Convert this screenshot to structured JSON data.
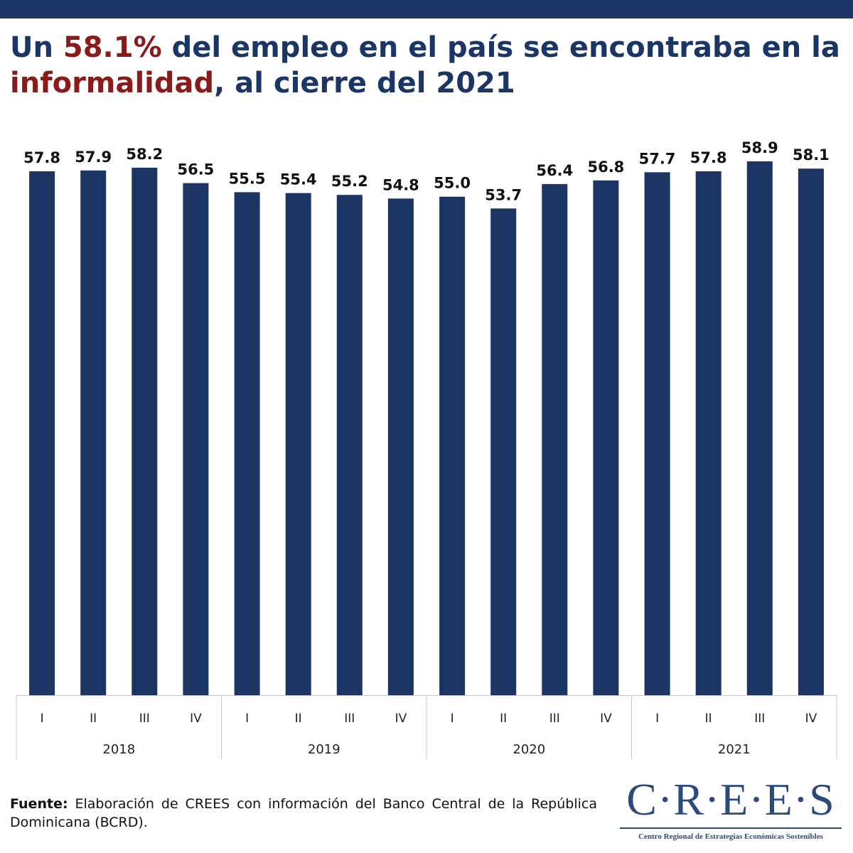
{
  "title": {
    "part1": "Un ",
    "highlight1": "58.1%",
    "part2": " del empleo en el país se encontraba en la ",
    "highlight2": "informalidad",
    "part3": ", al cierre del 2021"
  },
  "colors": {
    "bar": "#1b3564",
    "highlight": "#8b1a1a",
    "axis": "#c8c8c8"
  },
  "chart_data": {
    "type": "bar",
    "title": "Un 58.1% del empleo en el país se encontraba en la informalidad, al cierre del 2021",
    "categories": [
      "I",
      "II",
      "III",
      "IV",
      "I",
      "II",
      "III",
      "IV",
      "I",
      "II",
      "III",
      "IV",
      "I",
      "II",
      "III",
      "IV"
    ],
    "groups": [
      {
        "label": "2018",
        "count": 4
      },
      {
        "label": "2019",
        "count": 4
      },
      {
        "label": "2020",
        "count": 4
      },
      {
        "label": "2021",
        "count": 4
      }
    ],
    "values": [
      57.8,
      57.9,
      58.2,
      56.5,
      55.5,
      55.4,
      55.2,
      54.8,
      55.0,
      53.7,
      56.4,
      56.8,
      57.7,
      57.8,
      58.9,
      58.1
    ],
    "value_labels": [
      "57.8",
      "57.9",
      "58.2",
      "56.5",
      "55.5",
      "55.4",
      "55.2",
      "54.8",
      "55.0",
      "53.7",
      "56.4",
      "56.8",
      "57.7",
      "57.8",
      "58.9",
      "58.1"
    ],
    "xlabel": "",
    "ylabel": "",
    "ylim": [
      0,
      58.9
    ],
    "grid": false,
    "legend": "none"
  },
  "source": {
    "label": "Fuente:",
    "text": " Elaboración de CREES con información del Banco Central de la República Dominicana (BCRD)."
  },
  "logo": {
    "name": "C·R·E·E·S",
    "subtitle": "Centro Regional de Estrategias Económicas Sostenibles"
  }
}
